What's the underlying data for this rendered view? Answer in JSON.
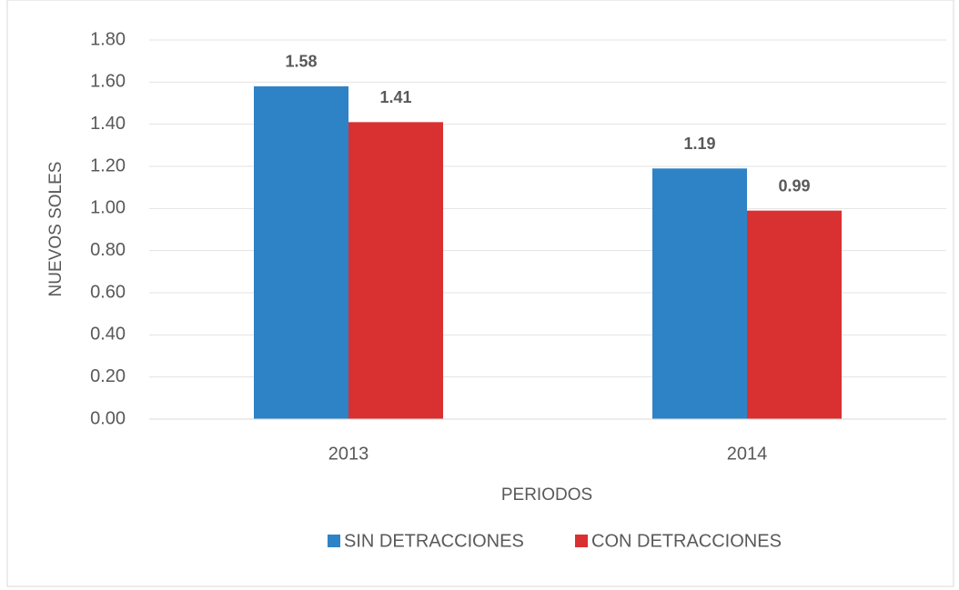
{
  "chart_data": {
    "type": "bar",
    "y_label": "NUEVOS SOLES",
    "x_label": "PERIODOS",
    "categories": [
      "2013",
      "2014"
    ],
    "series": [
      {
        "name": "SIN DETRACCIONES",
        "color": "#2e83c6",
        "values": [
          1.58,
          1.19
        ]
      },
      {
        "name": "CON DETRACCIONES",
        "color": "#d93131",
        "values": [
          1.41,
          0.99
        ]
      }
    ],
    "ylim": [
      0,
      1.8
    ],
    "yticks": [
      {
        "value": 0,
        "label": "0.00"
      },
      {
        "value": 0.2,
        "label": "0.20"
      },
      {
        "value": 0.4,
        "label": "0.40"
      },
      {
        "value": 0.6,
        "label": "0.60"
      },
      {
        "value": 0.8,
        "label": "0.80"
      },
      {
        "value": 1,
        "label": "1.00"
      },
      {
        "value": 1.2,
        "label": "1.20"
      },
      {
        "value": 1.4,
        "label": "1.40"
      },
      {
        "value": 1.6,
        "label": "1.60"
      },
      {
        "value": 1.8,
        "label": "1.80"
      }
    ],
    "grid": true
  }
}
